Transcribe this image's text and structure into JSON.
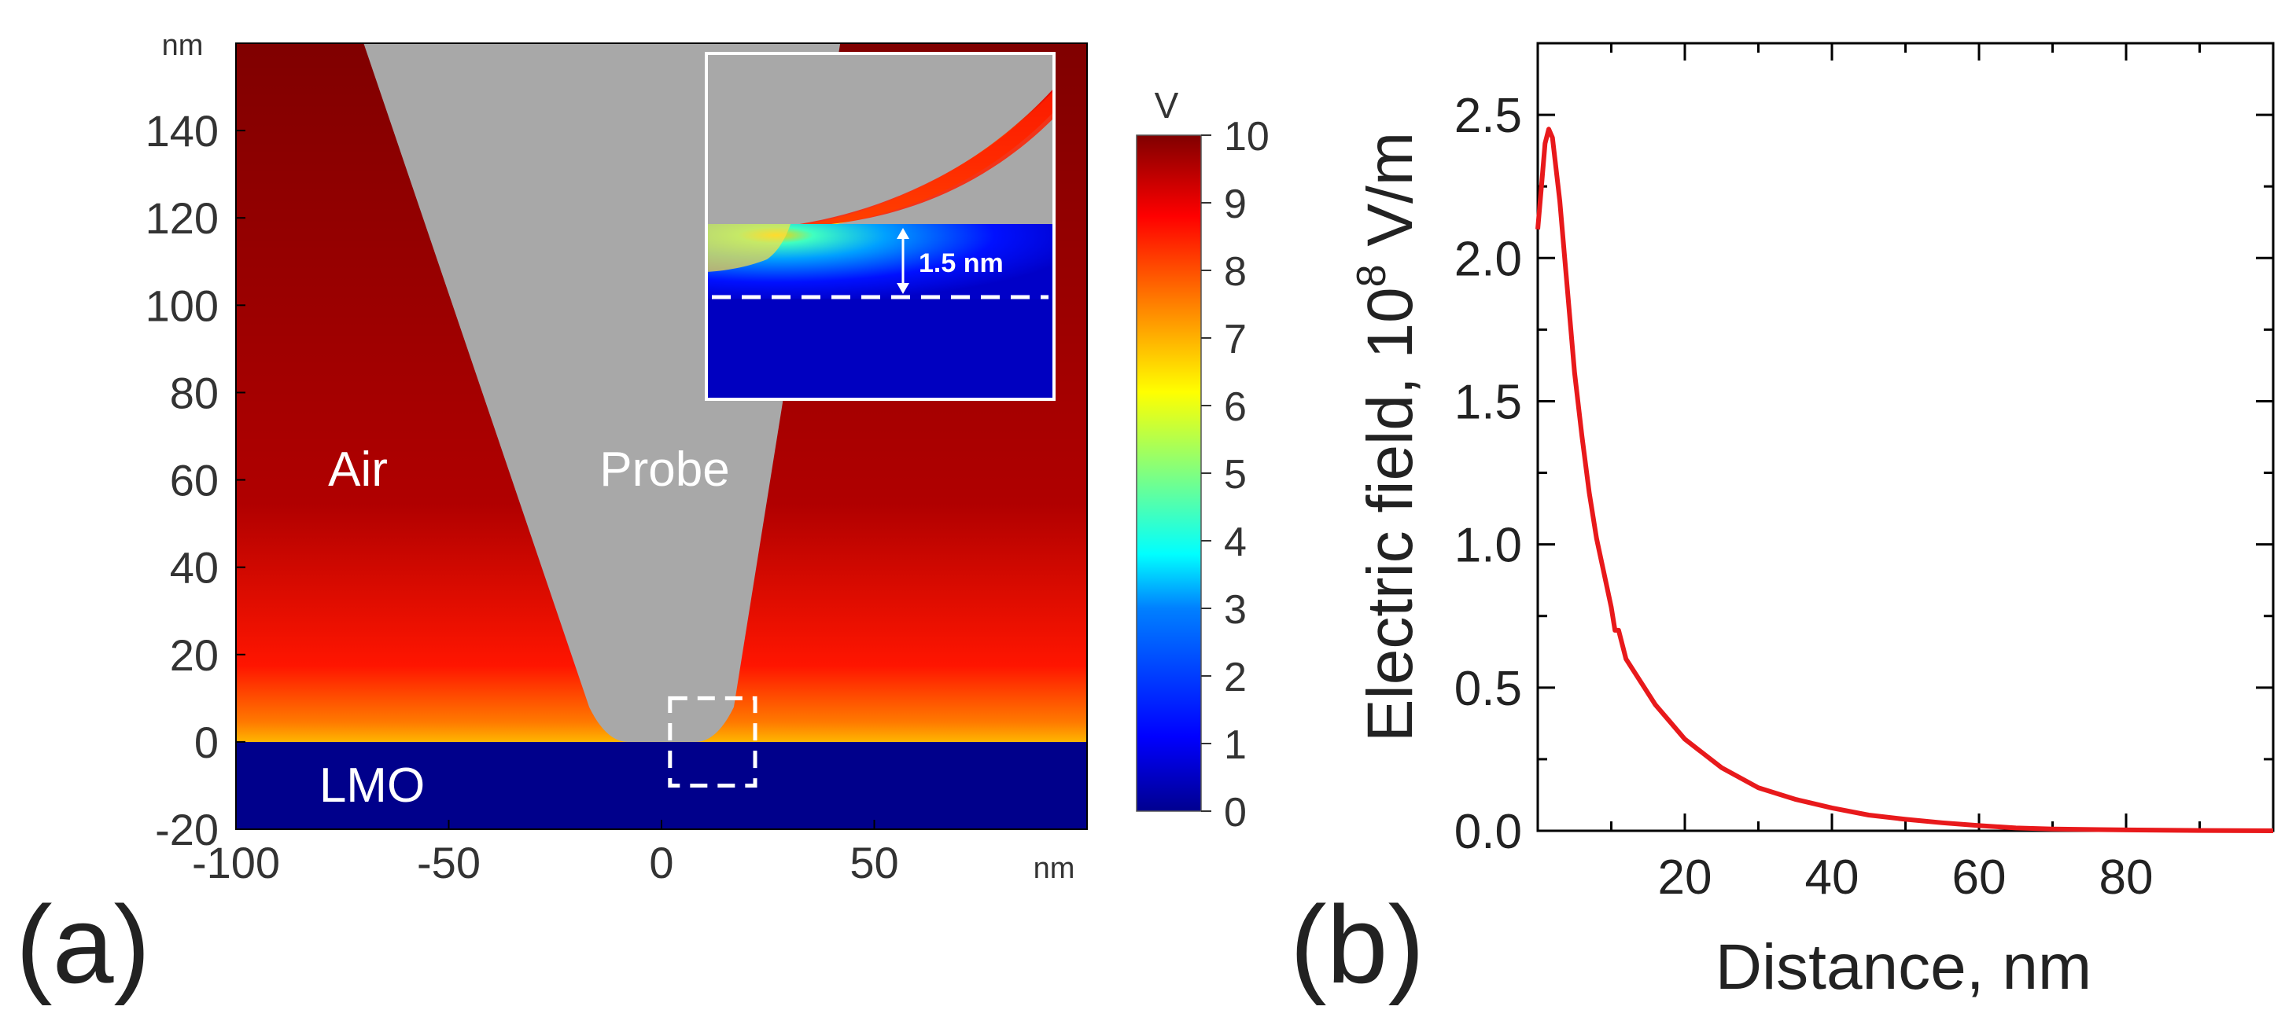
{
  "panel_labels": {
    "a": "(a)",
    "b": "(b)"
  },
  "chart_data": [
    {
      "type": "heatmap",
      "panel": "(a)",
      "x_unit": "nm",
      "y_unit": "nm",
      "xlim": [
        -100,
        100
      ],
      "ylim": [
        -20,
        160
      ],
      "xticks": [
        -100,
        -50,
        0,
        50
      ],
      "yticks": [
        -20,
        0,
        20,
        40,
        60,
        80,
        100,
        120,
        140
      ],
      "regions": {
        "air": "Air",
        "probe": "Probe",
        "substrate": "LMO"
      },
      "probe_outline_nm": [
        [
          -70,
          160
        ],
        [
          -17,
          8
        ],
        [
          -8,
          0
        ],
        [
          8,
          0
        ],
        [
          17,
          8
        ],
        [
          42,
          160
        ]
      ],
      "substrate_top_nm": 0,
      "zoom_box_nm": [
        2,
        22,
        -10,
        10
      ],
      "inset": {
        "gap_label": "1.5 nm"
      },
      "colorbar": {
        "unit": "V",
        "min": 0,
        "max": 10,
        "ticks": [
          0,
          1,
          2,
          3,
          4,
          5,
          6,
          7,
          8,
          9,
          10
        ],
        "colormap": [
          "#00008f",
          "#0000ff",
          "#0080ff",
          "#00ffff",
          "#80ff80",
          "#ffff00",
          "#ff8000",
          "#ff0000",
          "#800000"
        ]
      },
      "colors": {
        "probe": "#a8a8a8",
        "air_high": "#8b0000",
        "substrate": "#00008b"
      }
    },
    {
      "type": "line",
      "panel": "(b)",
      "xlabel": "Distance, nm",
      "ylabel_main": "Electric field, 10",
      "ylabel_sup": "8",
      "ylabel_tail": " V/m",
      "xlim": [
        0,
        100
      ],
      "ylim": [
        0,
        2.75
      ],
      "xticks": [
        20,
        40,
        60,
        80
      ],
      "yticks": [
        0.0,
        0.5,
        1.0,
        1.5,
        2.0,
        2.5
      ],
      "ytick_labels": [
        "0.0",
        "0.5",
        "1.0",
        "1.5",
        "2.0",
        "2.5"
      ],
      "series": [
        {
          "color": "#e8191b",
          "x": [
            0,
            0.5,
            1,
            1.5,
            2,
            3,
            4,
            5,
            6,
            7,
            8,
            9,
            10,
            10.5,
            11,
            12,
            14,
            16,
            18,
            20,
            25,
            30,
            35,
            40,
            45,
            50,
            55,
            60,
            65,
            70,
            80,
            90,
            100
          ],
          "y": [
            2.1,
            2.25,
            2.4,
            2.45,
            2.42,
            2.2,
            1.9,
            1.6,
            1.38,
            1.18,
            1.02,
            0.9,
            0.78,
            0.7,
            0.7,
            0.6,
            0.52,
            0.44,
            0.38,
            0.32,
            0.22,
            0.15,
            0.11,
            0.08,
            0.055,
            0.04,
            0.028,
            0.018,
            0.01,
            0.006,
            0.003,
            0.001,
            0.0
          ]
        }
      ]
    }
  ]
}
